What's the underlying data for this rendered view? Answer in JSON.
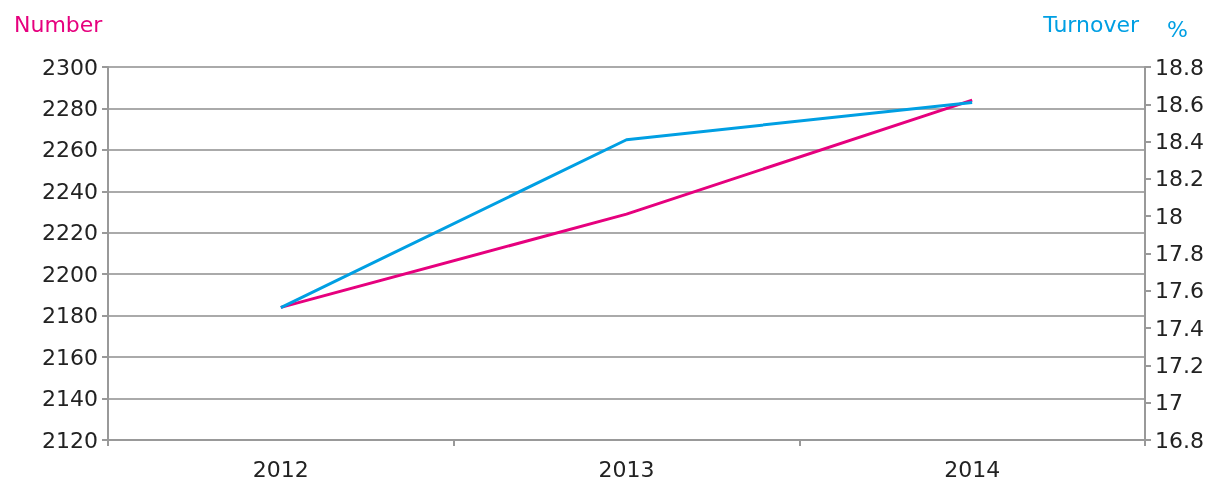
{
  "chart_data": {
    "type": "line",
    "categories": [
      "2012",
      "2013",
      "2014"
    ],
    "series": [
      {
        "name": "Number",
        "color": "#e6007e",
        "values": [
          2184,
          2229,
          2284
        ]
      },
      {
        "name": "Turnover",
        "color": "#009fe3",
        "values": [
          17.51,
          18.41,
          18.61
        ],
        "axis": "y2"
      }
    ],
    "y2label": "%",
    "ylim": [
      2120,
      2300
    ],
    "yticks": [
      2120,
      2140,
      2160,
      2180,
      2200,
      2220,
      2240,
      2260,
      2280,
      2300
    ],
    "y2lim": [
      16.8,
      18.8
    ],
    "y2ticks": [
      16.8,
      17,
      17.2,
      17.4,
      17.6,
      17.8,
      18,
      18.2,
      18.4,
      18.6,
      18.8
    ],
    "grid": "y",
    "legend": "top",
    "marker": "none",
    "line_style": "solid"
  }
}
